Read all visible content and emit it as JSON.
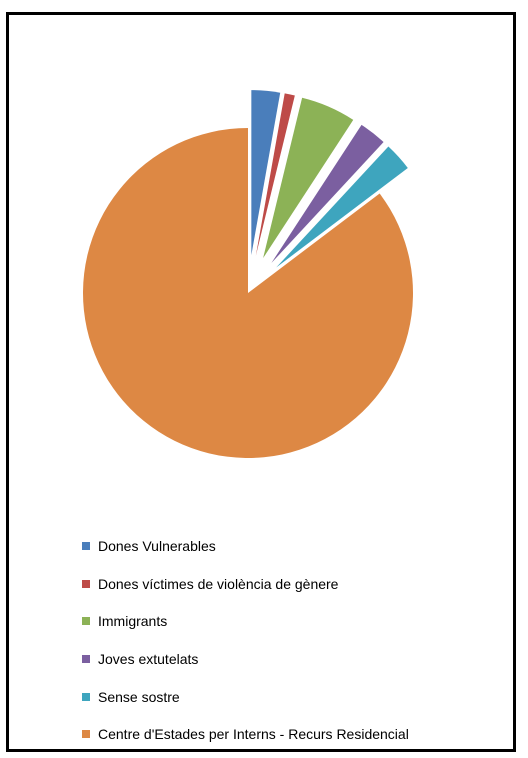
{
  "chart_data": {
    "type": "pie",
    "exploded": true,
    "legend_position": "bottom",
    "slices": [
      {
        "label": "Dones Vulnerables",
        "value": 2.8,
        "color": "#4A7EBB"
      },
      {
        "label": "Dones víctimes de violència de gènere",
        "value": 1.0,
        "color": "#BE4B48"
      },
      {
        "label": "Immigrants",
        "value": 5.4,
        "color": "#8CB256"
      },
      {
        "label": "Joves extutelats",
        "value": 2.7,
        "color": "#7B5FA0"
      },
      {
        "label": "Sense sostre",
        "value": 2.8,
        "color": "#3EA5BE"
      },
      {
        "label": "Centre d'Estades per Interns - Recurs Residencial",
        "value": 85.3,
        "color": "#DD8844"
      }
    ]
  }
}
